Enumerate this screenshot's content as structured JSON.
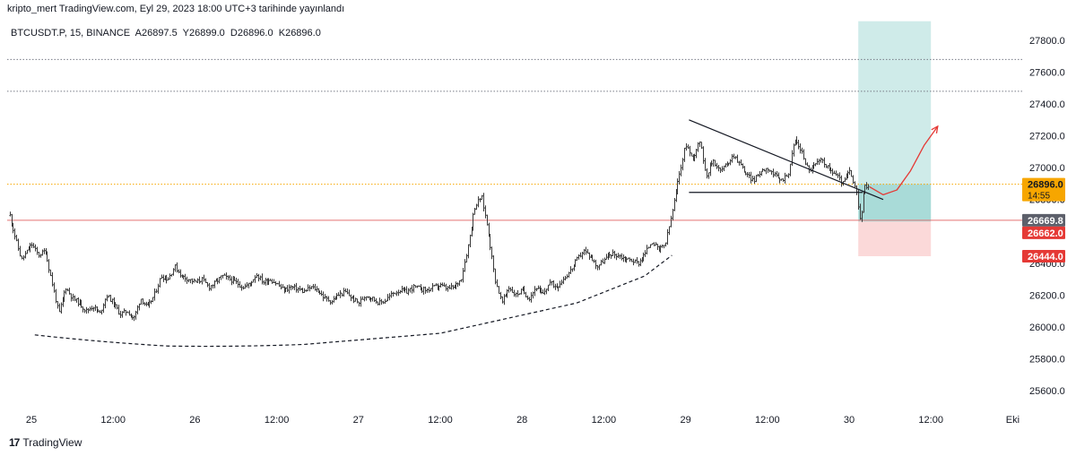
{
  "header": {
    "author": "kripto_mert",
    "platform": "TradingView.com",
    "published": "Eyl 29, 2023 18:00 UTC+3 tarihinde yayınlandı"
  },
  "symbol": {
    "name": "BTCUSDT.P",
    "interval": "15",
    "exchange": "BINANCE",
    "open": "A26897.5",
    "high": "Y26899.0",
    "low": "D26896.0",
    "close": "K26896.0"
  },
  "footer": {
    "logo_text": "TradingView",
    "logo_mark": "17"
  },
  "chart_data": {
    "type": "candlestick",
    "y_range": [
      25500,
      27900
    ],
    "y_ticks": [
      25600,
      25800,
      26000,
      26200,
      26400,
      26600,
      26800,
      27000,
      27200,
      27400,
      27600,
      27800
    ],
    "x_labels": [
      {
        "label": "25",
        "t": 0
      },
      {
        "label": "12:00",
        "t": 12
      },
      {
        "label": "26",
        "t": 24
      },
      {
        "label": "12:00",
        "t": 36
      },
      {
        "label": "27",
        "t": 48
      },
      {
        "label": "12:00",
        "t": 60
      },
      {
        "label": "28",
        "t": 72
      },
      {
        "label": "12:00",
        "t": 84
      },
      {
        "label": "29",
        "t": 96
      },
      {
        "label": "12:00",
        "t": 108
      },
      {
        "label": "30",
        "t": 120
      },
      {
        "label": "12:00",
        "t": 132
      },
      {
        "label": "Eki",
        "t": 144
      }
    ],
    "price_path": [
      [
        -3.2,
        26700
      ],
      [
        -2.5,
        26580
      ],
      [
        -1.5,
        26420
      ],
      [
        0,
        26520
      ],
      [
        1,
        26450
      ],
      [
        2,
        26480
      ],
      [
        3,
        26280
      ],
      [
        4,
        26080
      ],
      [
        5,
        26250
      ],
      [
        6,
        26180
      ],
      [
        7,
        26150
      ],
      [
        8,
        26100
      ],
      [
        9,
        26130
      ],
      [
        10,
        26080
      ],
      [
        11,
        26200
      ],
      [
        12,
        26150
      ],
      [
        13,
        26080
      ],
      [
        14,
        26100
      ],
      [
        15,
        26050
      ],
      [
        16,
        26180
      ],
      [
        17,
        26120
      ],
      [
        18,
        26200
      ],
      [
        19,
        26320
      ],
      [
        20,
        26300
      ],
      [
        21,
        26380
      ],
      [
        22,
        26320
      ],
      [
        23,
        26300
      ],
      [
        24,
        26280
      ],
      [
        25,
        26300
      ],
      [
        26,
        26250
      ],
      [
        27,
        26280
      ],
      [
        28,
        26320
      ],
      [
        29,
        26300
      ],
      [
        30,
        26280
      ],
      [
        31,
        26250
      ],
      [
        32,
        26270
      ],
      [
        33,
        26330
      ],
      [
        34,
        26280
      ],
      [
        35,
        26300
      ],
      [
        36,
        26270
      ],
      [
        37,
        26230
      ],
      [
        38,
        26250
      ],
      [
        39,
        26240
      ],
      [
        40,
        26220
      ],
      [
        41,
        26250
      ],
      [
        42,
        26230
      ],
      [
        43,
        26180
      ],
      [
        44,
        26160
      ],
      [
        45,
        26200
      ],
      [
        46,
        26220
      ],
      [
        47,
        26180
      ],
      [
        48,
        26150
      ],
      [
        49,
        26200
      ],
      [
        50,
        26180
      ],
      [
        51,
        26150
      ],
      [
        52,
        26170
      ],
      [
        53,
        26210
      ],
      [
        54,
        26230
      ],
      [
        55,
        26220
      ],
      [
        56,
        26250
      ],
      [
        57,
        26240
      ],
      [
        58,
        26230
      ],
      [
        59,
        26250
      ],
      [
        60,
        26260
      ],
      [
        61,
        26240
      ],
      [
        62,
        26250
      ],
      [
        63,
        26300
      ],
      [
        64,
        26500
      ],
      [
        65,
        26750
      ],
      [
        66,
        26820
      ],
      [
        67,
        26600
      ],
      [
        68,
        26300
      ],
      [
        69,
        26150
      ],
      [
        70,
        26250
      ],
      [
        71,
        26200
      ],
      [
        72,
        26230
      ],
      [
        73,
        26180
      ],
      [
        74,
        26250
      ],
      [
        75,
        26200
      ],
      [
        76,
        26280
      ],
      [
        77,
        26250
      ],
      [
        78,
        26300
      ],
      [
        79,
        26350
      ],
      [
        80,
        26420
      ],
      [
        81,
        26480
      ],
      [
        82,
        26440
      ],
      [
        83,
        26380
      ],
      [
        84,
        26420
      ],
      [
        85,
        26460
      ],
      [
        86,
        26450
      ],
      [
        87,
        26430
      ],
      [
        88,
        26420
      ],
      [
        89,
        26400
      ],
      [
        90,
        26460
      ],
      [
        91,
        26540
      ],
      [
        92,
        26480
      ],
      [
        93,
        26520
      ],
      [
        94,
        26720
      ],
      [
        95,
        26950
      ],
      [
        96,
        27150
      ],
      [
        97,
        27050
      ],
      [
        98,
        27180
      ],
      [
        99,
        26950
      ],
      [
        100,
        27050
      ],
      [
        101,
        26980
      ],
      [
        102,
        27020
      ],
      [
        103,
        27080
      ],
      [
        104,
        27020
      ],
      [
        105,
        26950
      ],
      [
        106,
        26920
      ],
      [
        107,
        26980
      ],
      [
        108,
        27000
      ],
      [
        109,
        26950
      ],
      [
        110,
        26920
      ],
      [
        111,
        26960
      ],
      [
        112,
        27180
      ],
      [
        113,
        27100
      ],
      [
        114,
        26980
      ],
      [
        115,
        27020
      ],
      [
        116,
        27050
      ],
      [
        117,
        26990
      ],
      [
        118,
        26960
      ],
      [
        119,
        26900
      ],
      [
        120,
        26980
      ],
      [
        121,
        26850
      ],
      [
        121.6,
        26660
      ],
      [
        122.2,
        26880
      ],
      [
        123,
        26896
      ]
    ],
    "horizontal_lines": [
      {
        "price": 27680,
        "style": "dotted",
        "color": "#787b86"
      },
      {
        "price": 27480,
        "style": "dotted",
        "color": "#787b86"
      },
      {
        "price": 26896,
        "style": "dotted",
        "color": "#f7a600"
      },
      {
        "price": 26669.8,
        "style": "solid",
        "color": "#e57373"
      }
    ],
    "arc": {
      "style": "dashed",
      "points": [
        [
          0.5,
          25950
        ],
        [
          20,
          25880
        ],
        [
          40,
          25890
        ],
        [
          60,
          25960
        ],
        [
          80,
          26150
        ],
        [
          90,
          26320
        ],
        [
          94,
          26450
        ]
      ]
    },
    "triangle": {
      "upper": [
        [
          96.5,
          27300
        ],
        [
          125,
          26800
        ]
      ],
      "lower": [
        [
          96.5,
          26845
        ],
        [
          122,
          26845
        ]
      ]
    },
    "position": {
      "t_start": 122,
      "t_end": 132,
      "entry": 26662.0,
      "stop": 26444.0,
      "target": 27920,
      "profit_color": "#26a69a",
      "loss_color": "#ef5350"
    },
    "projection": {
      "color": "#e53935",
      "points": [
        [
          123,
          26880
        ],
        [
          125,
          26830
        ],
        [
          127,
          26860
        ],
        [
          129,
          26980
        ],
        [
          131,
          27140
        ],
        [
          133,
          27260
        ]
      ]
    },
    "price_labels": [
      {
        "text": "26896.0",
        "price": 26896,
        "bg": "#f7a600",
        "color": "#131722",
        "sub": "14:55"
      },
      {
        "text": "26669.8",
        "price": 26669.8,
        "bg": "#5d606b",
        "color": "#ffffff"
      },
      {
        "text": "26662.0",
        "price": 26662.0,
        "bg": "#e53935",
        "color": "#ffffff"
      },
      {
        "text": "26444.0",
        "price": 26444.0,
        "bg": "#e53935",
        "color": "#ffffff"
      }
    ],
    "axis_partial_ticks": [
      {
        "text": "26800.0",
        "price": 26800
      },
      {
        "text": "26400.0",
        "price": 26400
      }
    ]
  }
}
